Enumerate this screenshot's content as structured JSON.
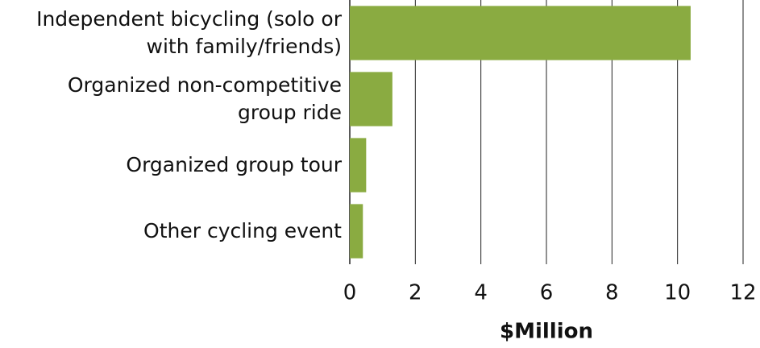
{
  "chart_data": {
    "type": "bar",
    "orientation": "horizontal",
    "categories": [
      "Independent bicycling (solo or\nwith family/friends)",
      "Organized non-competitive\ngroup ride",
      "Organized group tour",
      "Other cycling event"
    ],
    "values": [
      10.4,
      1.3,
      0.5,
      0.4
    ],
    "color": "#8aab41",
    "xlim": [
      0,
      12
    ],
    "xticks": [
      0,
      2,
      4,
      6,
      8,
      10,
      12
    ],
    "grid": true,
    "xlabel": "$Million"
  }
}
